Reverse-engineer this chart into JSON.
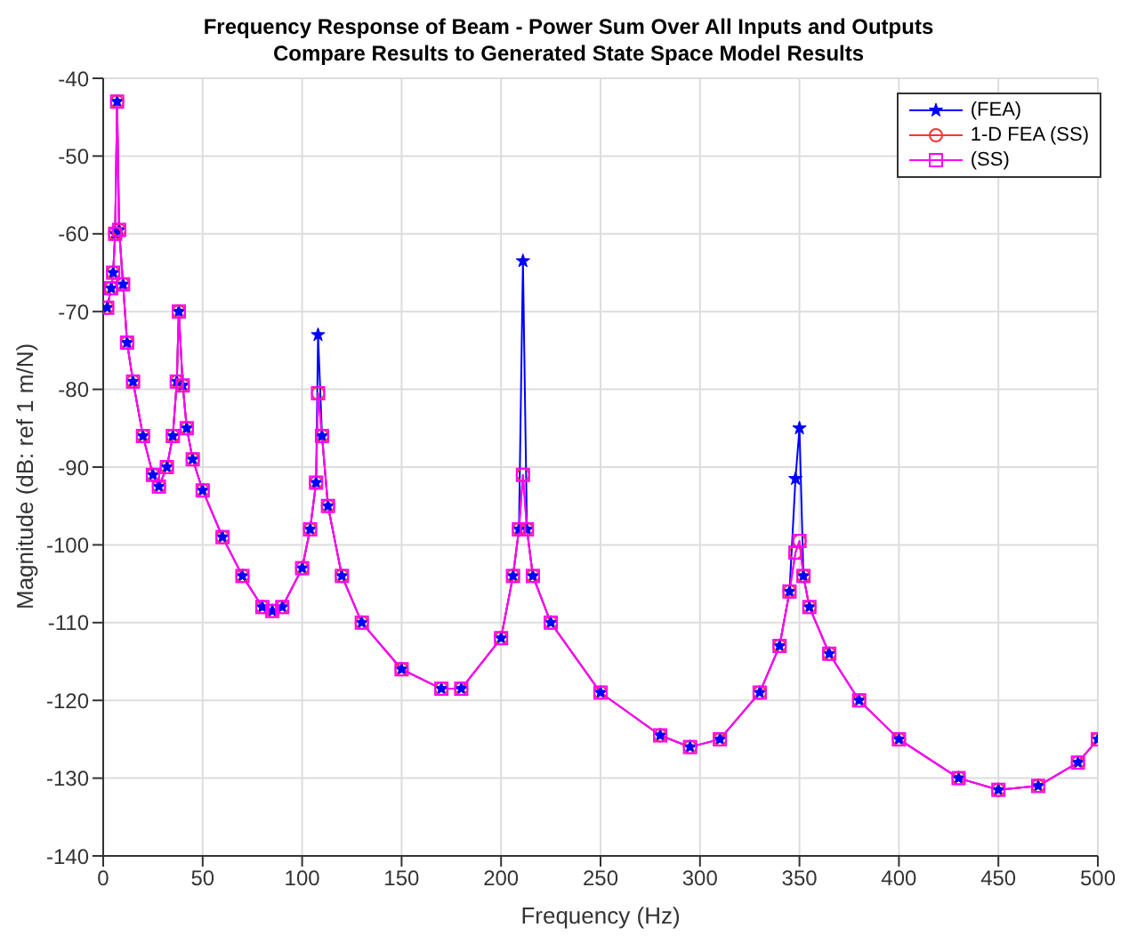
{
  "chart_data": {
    "type": "line",
    "title": "Frequency Response of Beam - Power Sum Over All Inputs and Outputs",
    "subtitle": "Compare Results to Generated State Space Model Results",
    "xlabel": "Frequency (Hz)",
    "ylabel": "Magnitude (dB: ref 1 m/N)",
    "x": [
      2,
      4,
      5,
      6,
      7,
      8,
      10,
      12,
      15,
      20,
      25,
      28,
      32,
      35,
      37,
      38,
      40,
      42,
      45,
      50,
      60,
      70,
      80,
      85,
      90,
      100,
      104,
      107,
      108,
      110,
      113,
      120,
      130,
      150,
      170,
      180,
      200,
      206,
      209,
      211,
      213,
      216,
      225,
      250,
      280,
      295,
      310,
      330,
      340,
      345,
      348,
      350,
      352,
      355,
      365,
      380,
      400,
      430,
      450,
      470,
      490,
      500
    ],
    "series": [
      {
        "name": "(FEA)",
        "color": "#0000ff",
        "marker": "star",
        "values": [
          -69.5,
          -67,
          -65,
          -60,
          -43,
          -59.5,
          -66.5,
          -74,
          -79,
          -86,
          -91,
          -92.5,
          -90,
          -86,
          -79,
          -70,
          -79.5,
          -85,
          -89,
          -93,
          -99,
          -104,
          -108,
          -108.5,
          -108,
          -103,
          -98,
          -92,
          -73,
          -86,
          -95,
          -104,
          -110,
          -116,
          -118.5,
          -118.5,
          -112,
          -104,
          -98,
          -63.5,
          -98,
          -104,
          -110,
          -119,
          -124.5,
          -126,
          -125,
          -119,
          -113,
          -106,
          -91.5,
          -85,
          -104,
          -108,
          -114,
          -120,
          -125,
          -130,
          -131.5,
          -131,
          -128,
          -125
        ]
      },
      {
        "name": "1-D FEA (SS)",
        "color": "#ff3333",
        "marker": "circle",
        "values": [
          -69.5,
          -67,
          -65,
          -60,
          -43,
          -59.5,
          -66.5,
          -74,
          -79,
          -86,
          -91,
          -92.5,
          -90,
          -86,
          -79,
          -70,
          -79.5,
          -85,
          -89,
          -93,
          -99,
          -104,
          -108,
          -108.5,
          -108,
          -103,
          -98,
          -92,
          -80.5,
          -86,
          -95,
          -104,
          -110,
          -116,
          -118.5,
          -118.5,
          -112,
          -104,
          -98,
          -91,
          -98,
          -104,
          -110,
          -119,
          -124.5,
          -126,
          -125,
          -119,
          -113,
          -106,
          -101,
          -99.5,
          -104,
          -108,
          -114,
          -120,
          -125,
          -130,
          -131.5,
          -131,
          -128,
          -125
        ]
      },
      {
        "name": "(SS)",
        "color": "#ff00ff",
        "marker": "square",
        "values": [
          -69.5,
          -67,
          -65,
          -60,
          -43,
          -59.5,
          -66.5,
          -74,
          -79,
          -86,
          -91,
          -92.5,
          -90,
          -86,
          -79,
          -70,
          -79.5,
          -85,
          -89,
          -93,
          -99,
          -104,
          -108,
          -108.5,
          -108,
          -103,
          -98,
          -92,
          -80.5,
          -86,
          -95,
          -104,
          -110,
          -116,
          -118.5,
          -118.5,
          -112,
          -104,
          -98,
          -91,
          -98,
          -104,
          -110,
          -119,
          -124.5,
          -126,
          -125,
          -119,
          -113,
          -106,
          -101,
          -99.5,
          -104,
          -108,
          -114,
          -120,
          -125,
          -130,
          -131.5,
          -131,
          -128,
          -125
        ]
      }
    ],
    "xlim": [
      0,
      500
    ],
    "xticks": [
      0,
      50,
      100,
      150,
      200,
      250,
      300,
      350,
      400,
      450,
      500
    ],
    "ylim": [
      -140,
      -40
    ],
    "yticks": [
      -140,
      -130,
      -120,
      -110,
      -100,
      -90,
      -80,
      -70,
      -60,
      -50,
      -40
    ],
    "grid": true,
    "legend": "top right"
  }
}
